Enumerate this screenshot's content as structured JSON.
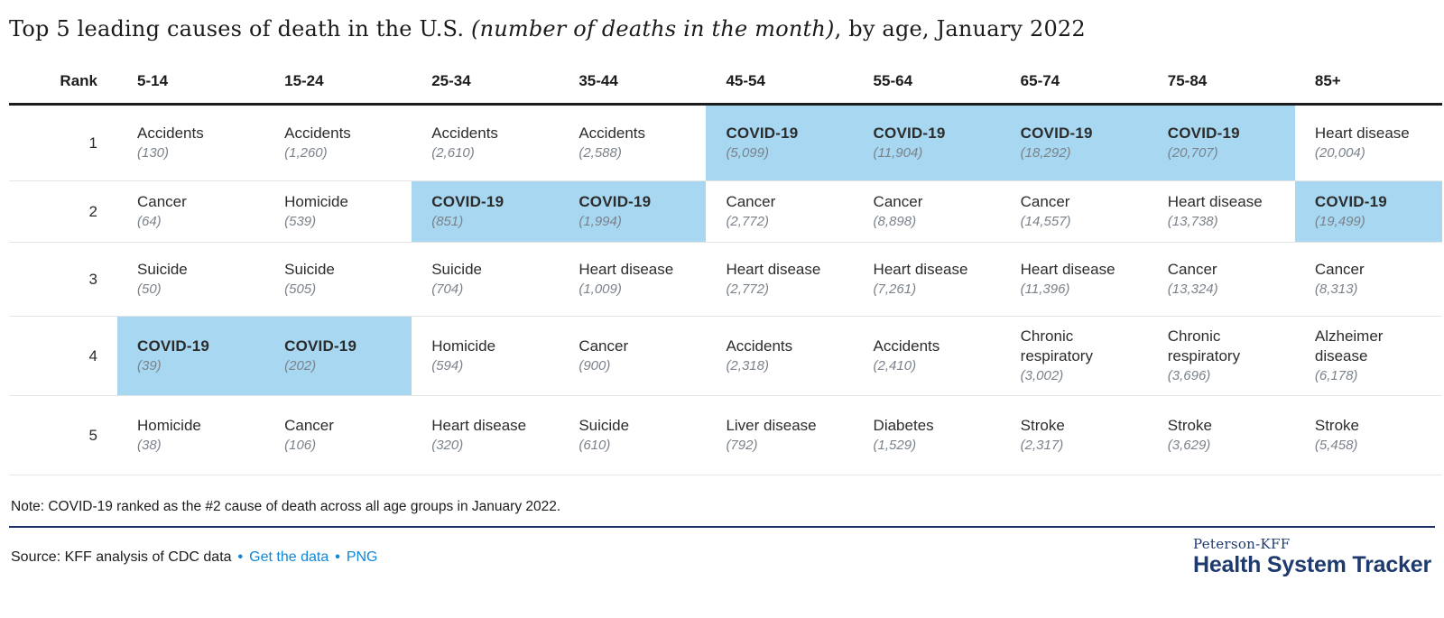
{
  "page": {
    "title_prefix": "Top 5 leading causes of death in the U.S. ",
    "title_italic": "(number of deaths in the month)",
    "title_suffix": ", by age, January 2022"
  },
  "chart_data": {
    "type": "table",
    "title": "Top 5 leading causes of death in the U.S. (number of deaths in the month), by age, January 2022",
    "highlight_meaning": "COVID-19 cells shaded light blue",
    "columns": [
      "Rank",
      "5-14",
      "15-24",
      "25-34",
      "35-44",
      "45-54",
      "55-64",
      "65-74",
      "75-84",
      "85+"
    ],
    "rows": [
      {
        "rank": "1",
        "cells": [
          {
            "cause": "Accidents",
            "value": 130,
            "display": "(130)",
            "highlight": false
          },
          {
            "cause": "Accidents",
            "value": 1260,
            "display": "(1,260)",
            "highlight": false
          },
          {
            "cause": "Accidents",
            "value": 2610,
            "display": "(2,610)",
            "highlight": false
          },
          {
            "cause": "Accidents",
            "value": 2588,
            "display": "(2,588)",
            "highlight": false
          },
          {
            "cause": "COVID-19",
            "value": 5099,
            "display": "(5,099)",
            "highlight": true
          },
          {
            "cause": "COVID-19",
            "value": 11904,
            "display": "(11,904)",
            "highlight": true
          },
          {
            "cause": "COVID-19",
            "value": 18292,
            "display": "(18,292)",
            "highlight": true
          },
          {
            "cause": "COVID-19",
            "value": 20707,
            "display": "(20,707)",
            "highlight": true
          },
          {
            "cause": "Heart disease",
            "value": 20004,
            "display": "(20,004)",
            "highlight": false
          }
        ]
      },
      {
        "rank": "2",
        "cells": [
          {
            "cause": "Cancer",
            "value": 64,
            "display": "(64)",
            "highlight": false
          },
          {
            "cause": "Homicide",
            "value": 539,
            "display": "(539)",
            "highlight": false
          },
          {
            "cause": "COVID-19",
            "value": 851,
            "display": "(851)",
            "highlight": true
          },
          {
            "cause": "COVID-19",
            "value": 1994,
            "display": "(1,994)",
            "highlight": true
          },
          {
            "cause": "Cancer",
            "value": 2772,
            "display": "(2,772)",
            "highlight": false
          },
          {
            "cause": "Cancer",
            "value": 8898,
            "display": "(8,898)",
            "highlight": false
          },
          {
            "cause": "Cancer",
            "value": 14557,
            "display": "(14,557)",
            "highlight": false
          },
          {
            "cause": "Heart disease",
            "value": 13738,
            "display": "(13,738)",
            "highlight": false
          },
          {
            "cause": "COVID-19",
            "value": 19499,
            "display": "(19,499)",
            "highlight": true
          }
        ]
      },
      {
        "rank": "3",
        "cells": [
          {
            "cause": "Suicide",
            "value": 50,
            "display": "(50)",
            "highlight": false
          },
          {
            "cause": "Suicide",
            "value": 505,
            "display": "(505)",
            "highlight": false
          },
          {
            "cause": "Suicide",
            "value": 704,
            "display": "(704)",
            "highlight": false
          },
          {
            "cause": "Heart disease",
            "value": 1009,
            "display": "(1,009)",
            "highlight": false
          },
          {
            "cause": "Heart disease",
            "value": 2772,
            "display": "(2,772)",
            "highlight": false
          },
          {
            "cause": "Heart disease",
            "value": 7261,
            "display": "(7,261)",
            "highlight": false
          },
          {
            "cause": "Heart disease",
            "value": 11396,
            "display": "(11,396)",
            "highlight": false
          },
          {
            "cause": "Cancer",
            "value": 13324,
            "display": "(13,324)",
            "highlight": false
          },
          {
            "cause": "Cancer",
            "value": 8313,
            "display": "(8,313)",
            "highlight": false
          }
        ]
      },
      {
        "rank": "4",
        "cells": [
          {
            "cause": "COVID-19",
            "value": 39,
            "display": "(39)",
            "highlight": true
          },
          {
            "cause": "COVID-19",
            "value": 202,
            "display": "(202)",
            "highlight": true
          },
          {
            "cause": "Homicide",
            "value": 594,
            "display": "(594)",
            "highlight": false
          },
          {
            "cause": "Cancer",
            "value": 900,
            "display": "(900)",
            "highlight": false
          },
          {
            "cause": "Accidents",
            "value": 2318,
            "display": "(2,318)",
            "highlight": false
          },
          {
            "cause": "Accidents",
            "value": 2410,
            "display": "(2,410)",
            "highlight": false
          },
          {
            "cause": "Chronic respiratory",
            "value": 3002,
            "display": "(3,002)",
            "highlight": false
          },
          {
            "cause": "Chronic respiratory",
            "value": 3696,
            "display": "(3,696)",
            "highlight": false
          },
          {
            "cause": "Alzheimer disease",
            "value": 6178,
            "display": "(6,178)",
            "highlight": false
          }
        ]
      },
      {
        "rank": "5",
        "cells": [
          {
            "cause": "Homicide",
            "value": 38,
            "display": "(38)",
            "highlight": false
          },
          {
            "cause": "Cancer",
            "value": 106,
            "display": "(106)",
            "highlight": false
          },
          {
            "cause": "Heart disease",
            "value": 320,
            "display": "(320)",
            "highlight": false
          },
          {
            "cause": "Suicide",
            "value": 610,
            "display": "(610)",
            "highlight": false
          },
          {
            "cause": "Liver disease",
            "value": 792,
            "display": "(792)",
            "highlight": false
          },
          {
            "cause": "Diabetes",
            "value": 1529,
            "display": "(1,529)",
            "highlight": false
          },
          {
            "cause": "Stroke",
            "value": 2317,
            "display": "(2,317)",
            "highlight": false
          },
          {
            "cause": "Stroke",
            "value": 3629,
            "display": "(3,629)",
            "highlight": false
          },
          {
            "cause": "Stroke",
            "value": 5458,
            "display": "(5,458)",
            "highlight": false
          }
        ]
      }
    ]
  },
  "note": "Note: COVID-19 ranked as the #2 cause of death across all age groups in January 2022.",
  "source": {
    "label": "Source: KFF analysis of CDC data",
    "separator": "•",
    "links": [
      "Get the data",
      "PNG"
    ]
  },
  "logo": {
    "brand": "Peterson-KFF",
    "name": "Health System Tracker"
  },
  "colors": {
    "highlight": "#a7d7f1",
    "link": "#1287d8",
    "navy": "#1e3a6f",
    "rule": "#1f2f6e"
  }
}
